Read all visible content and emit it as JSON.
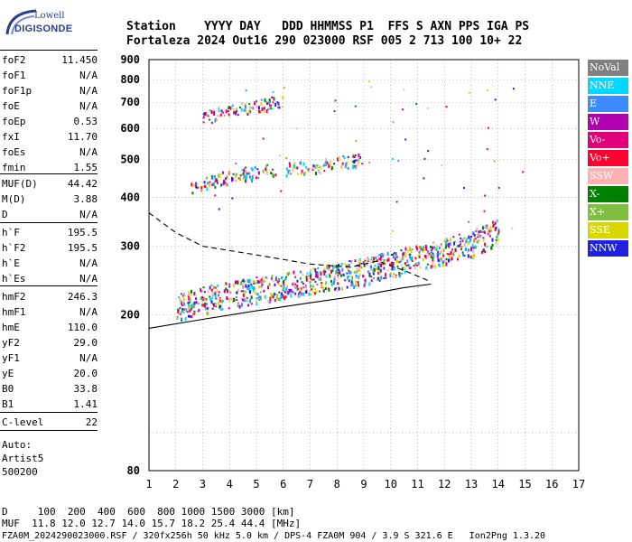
{
  "logo": {
    "line1": "Lowell",
    "line2": "DIGISONDE"
  },
  "header": {
    "row1": "Station    YYYY DAY   DDD HHMMSS P1  FFS S AXN PPS IGA PS",
    "row2": "Fortaleza 2024 Out16 290 023000 RSF 005 2 713 100 10+ 22"
  },
  "params": [
    {
      "name": "foF2",
      "value": "11.450"
    },
    {
      "name": "foF1",
      "value": "N/A"
    },
    {
      "name": "foF1p",
      "value": "N/A"
    },
    {
      "name": "foE",
      "value": "N/A"
    },
    {
      "name": "foEp",
      "value": "0.53"
    },
    {
      "name": "fxI",
      "value": "11.70"
    },
    {
      "name": "foEs",
      "value": "N/A"
    },
    {
      "name": "fmin",
      "value": "1.55"
    },
    {
      "name": "MUF(D)",
      "value": "44.42"
    },
    {
      "name": "M(D)",
      "value": "3.88"
    },
    {
      "name": "D",
      "value": "N/A"
    },
    {
      "name": "h`F",
      "value": "195.5"
    },
    {
      "name": "h`F2",
      "value": "195.5"
    },
    {
      "name": "h`E",
      "value": "N/A"
    },
    {
      "name": "h`Es",
      "value": "N/A"
    },
    {
      "name": "hmF2",
      "value": "246.3"
    },
    {
      "name": "hmF1",
      "value": "N/A"
    },
    {
      "name": "hmE",
      "value": "110.0"
    },
    {
      "name": "yF2",
      "value": "29.0"
    },
    {
      "name": "yF1",
      "value": "N/A"
    },
    {
      "name": "yE",
      "value": "20.0"
    },
    {
      "name": "B0",
      "value": "33.8"
    },
    {
      "name": "B1",
      "value": "1.41"
    },
    {
      "name": "C-level",
      "value": "22"
    }
  ],
  "auto": {
    "line1": "Auto:",
    "line2": "Artist5",
    "line3": "500200"
  },
  "footer": {
    "d_row": "D     100  200  400  600  800 1000 1500 3000 [km]",
    "muf_row": "MUF  11.8 12.0 12.7 14.0 15.7 18.2 25.4 44.4 [MHz]",
    "info_row": "FZA0M_2024290023000.RSF / 320fx256h 50 kHz 5.0 km / DPS-4 FZA0M 904 / 3.9 S 321.6 E   Ion2Png 1.3.20"
  },
  "legend": [
    {
      "label": "NoVal",
      "color": "#808080"
    },
    {
      "label": "NNE",
      "color": "#00d8ff"
    },
    {
      "label": "E",
      "color": "#3c8cff"
    },
    {
      "label": "W",
      "color": "#b000b0"
    },
    {
      "label": "Vo-",
      "color": "#e0007a"
    },
    {
      "label": "Vo+",
      "color": "#ff0030"
    },
    {
      "label": "SSW",
      "color": "#ffb0b0"
    },
    {
      "label": "X-",
      "color": "#008000"
    },
    {
      "label": "X+",
      "color": "#80c040"
    },
    {
      "label": "SSE",
      "color": "#d8d800"
    },
    {
      "label": "NNW",
      "color": "#2020e0"
    }
  ],
  "chart_data": {
    "type": "scatter",
    "xlabel": "",
    "ylabel": "",
    "xlim": [
      1,
      17
    ],
    "ylim": [
      80,
      900
    ],
    "y_scale": "log",
    "x_ticks": [
      "1",
      "2",
      "3",
      "4",
      "5",
      "6",
      "7",
      "8",
      "9",
      "10",
      "11",
      "12",
      "13",
      "14",
      "15",
      "16",
      "17"
    ],
    "y_ticks": [
      "80",
      "200",
      "300",
      "400",
      "500",
      "600",
      "700",
      "800",
      "900"
    ],
    "grid": "dotted",
    "traces": [
      {
        "name": "F2 trace",
        "x": [
          2.0,
          3.0,
          4.0,
          5.0,
          6.0,
          7.0,
          8.0,
          9.0,
          10.0,
          11.0,
          12.0,
          13.0,
          14.0
        ],
        "y": [
          205,
          215,
          222,
          228,
          235,
          240,
          248,
          255,
          265,
          275,
          285,
          300,
          320
        ]
      },
      {
        "name": "2nd hop",
        "x": [
          2.5,
          3.5,
          4.5,
          5.5,
          7.0,
          8.0,
          9.0
        ],
        "y": [
          420,
          440,
          455,
          465,
          475,
          485,
          495
        ]
      },
      {
        "name": "3rd hop",
        "x": [
          3.0,
          4.0,
          5.0,
          6.0
        ],
        "y": [
          640,
          660,
          680,
          700
        ]
      }
    ],
    "profile_curves": [
      {
        "name": "dashed",
        "x": [
          1.0,
          2.0,
          3.0,
          5.0,
          7.0,
          8.5,
          9.5,
          10.5,
          11.4
        ],
        "y": [
          365,
          325,
          300,
          285,
          270,
          265,
          275,
          260,
          245
        ]
      },
      {
        "name": "solid",
        "x": [
          1.0,
          3.0,
          5.0,
          7.0,
          9.0,
          10.5,
          11.5
        ],
        "y": [
          185,
          195,
          205,
          215,
          225,
          235,
          240
        ]
      }
    ]
  }
}
